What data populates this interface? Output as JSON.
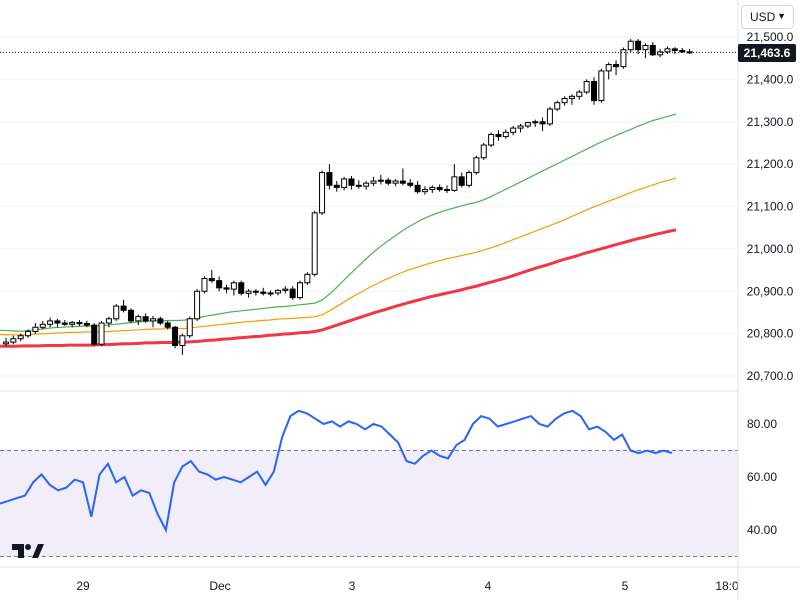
{
  "toolbar": {
    "currency_label": "USD"
  },
  "last_price_label": "21,463.6",
  "colors": {
    "candle_up_fill": "#ffffff",
    "candle_down_fill": "#000000",
    "candle_border": "#000000",
    "ma_green": "#4caf50",
    "ma_orange": "#ff9800",
    "ma_red": "#f23645",
    "rsi_line": "#2962ff",
    "rsi_band": "#7e57c2"
  },
  "icons": {
    "logo": "tradingview-logo-icon",
    "dropdown": "chevron-down-icon"
  },
  "chart_data": [
    {
      "type": "candlestick",
      "y_tick_labels": [
        "21,500.0",
        "21,400.0",
        "21,300.0",
        "21,200.0",
        "21,100.0",
        "21,000.0",
        "20,900.0",
        "20,800.0",
        "20,700.0"
      ],
      "ylim": [
        20670,
        21550
      ],
      "x_tick_labels": [
        "29",
        "Dec",
        "3",
        "4",
        "5",
        "18:0"
      ],
      "last_price": 21463.6,
      "ohlc": [
        [
          20776,
          20790,
          20770,
          20780
        ],
        [
          20780,
          20795,
          20775,
          20788
        ],
        [
          20788,
          20800,
          20782,
          20795
        ],
        [
          20795,
          20810,
          20790,
          20805
        ],
        [
          20805,
          20825,
          20800,
          20815
        ],
        [
          20815,
          20830,
          20810,
          20822
        ],
        [
          20822,
          20838,
          20815,
          20830
        ],
        [
          20830,
          20835,
          20815,
          20825
        ],
        [
          20825,
          20832,
          20818,
          20822
        ],
        [
          20822,
          20830,
          20815,
          20826
        ],
        [
          20826,
          20832,
          20818,
          20824
        ],
        [
          20824,
          20830,
          20815,
          20820
        ],
        [
          20820,
          20825,
          20770,
          20775
        ],
        [
          20775,
          20830,
          20770,
          20825
        ],
        [
          20825,
          20840,
          20815,
          20835
        ],
        [
          20835,
          20870,
          20830,
          20865
        ],
        [
          20865,
          20880,
          20850,
          20855
        ],
        [
          20855,
          20860,
          20825,
          20830
        ],
        [
          20830,
          20845,
          20820,
          20840
        ],
        [
          20840,
          20848,
          20825,
          20830
        ],
        [
          20830,
          20842,
          20815,
          20835
        ],
        [
          20835,
          20840,
          20820,
          20825
        ],
        [
          20825,
          20830,
          20810,
          20815
        ],
        [
          20815,
          20818,
          20765,
          20772
        ],
        [
          20772,
          20800,
          20750,
          20795
        ],
        [
          20795,
          20840,
          20790,
          20835
        ],
        [
          20835,
          20905,
          20830,
          20900
        ],
        [
          20900,
          20935,
          20895,
          20930
        ],
        [
          20930,
          20950,
          20920,
          20925
        ],
        [
          20925,
          20935,
          20900,
          20908
        ],
        [
          20908,
          20915,
          20895,
          20905
        ],
        [
          20905,
          20925,
          20890,
          20920
        ],
        [
          20920,
          20925,
          20890,
          20895
        ],
        [
          20895,
          20905,
          20885,
          20900
        ],
        [
          20900,
          20905,
          20890,
          20898
        ],
        [
          20898,
          20908,
          20890,
          20895
        ],
        [
          20895,
          20902,
          20888,
          20896
        ],
        [
          20896,
          20905,
          20890,
          20902
        ],
        [
          20902,
          20912,
          20895,
          20905
        ],
        [
          20905,
          20912,
          20880,
          20885
        ],
        [
          20885,
          20925,
          20880,
          20920
        ],
        [
          20920,
          20945,
          20915,
          20940
        ],
        [
          20940,
          21090,
          20935,
          21085
        ],
        [
          21085,
          21185,
          21080,
          21180
        ],
        [
          21180,
          21200,
          21140,
          21150
        ],
        [
          21150,
          21160,
          21135,
          21145
        ],
        [
          21145,
          21170,
          21138,
          21165
        ],
        [
          21165,
          21172,
          21140,
          21150
        ],
        [
          21150,
          21162,
          21142,
          21148
        ],
        [
          21148,
          21160,
          21140,
          21155
        ],
        [
          21155,
          21170,
          21148,
          21160
        ],
        [
          21160,
          21175,
          21152,
          21162
        ],
        [
          21162,
          21168,
          21150,
          21155
        ],
        [
          21155,
          21165,
          21148,
          21160
        ],
        [
          21160,
          21190,
          21150,
          21155
        ],
        [
          21155,
          21165,
          21145,
          21150
        ],
        [
          21150,
          21160,
          21130,
          21135
        ],
        [
          21135,
          21148,
          21128,
          21140
        ],
        [
          21140,
          21150,
          21132,
          21145
        ],
        [
          21145,
          21152,
          21135,
          21140
        ],
        [
          21140,
          21150,
          21132,
          21138
        ],
        [
          21138,
          21200,
          21135,
          21170
        ],
        [
          21170,
          21180,
          21145,
          21150
        ],
        [
          21150,
          21185,
          21145,
          21180
        ],
        [
          21180,
          21220,
          21175,
          21215
        ],
        [
          21215,
          21250,
          21210,
          21245
        ],
        [
          21245,
          21275,
          21240,
          21270
        ],
        [
          21270,
          21280,
          21255,
          21265
        ],
        [
          21265,
          21282,
          21260,
          21275
        ],
        [
          21275,
          21290,
          21268,
          21285
        ],
        [
          21285,
          21295,
          21275,
          21290
        ],
        [
          21290,
          21300,
          21285,
          21298
        ],
        [
          21298,
          21305,
          21288,
          21300
        ],
        [
          21300,
          21310,
          21278,
          21295
        ],
        [
          21295,
          21335,
          21290,
          21330
        ],
        [
          21330,
          21350,
          21325,
          21345
        ],
        [
          21345,
          21360,
          21338,
          21355
        ],
        [
          21355,
          21365,
          21340,
          21360
        ],
        [
          21360,
          21375,
          21352,
          21370
        ],
        [
          21370,
          21400,
          21365,
          21395
        ],
        [
          21395,
          21405,
          21340,
          21350
        ],
        [
          21350,
          21425,
          21345,
          21420
        ],
        [
          21420,
          21440,
          21400,
          21435
        ],
        [
          21435,
          21445,
          21410,
          21430
        ],
        [
          21430,
          21475,
          21425,
          21470
        ],
        [
          21470,
          21495,
          21465,
          21490
        ],
        [
          21490,
          21495,
          21460,
          21470
        ],
        [
          21470,
          21485,
          21450,
          21480
        ],
        [
          21480,
          21488,
          21455,
          21458
        ],
        [
          21458,
          21472,
          21452,
          21465
        ],
        [
          21465,
          21478,
          21460,
          21472
        ],
        [
          21472,
          21476,
          21460,
          21468
        ],
        [
          21468,
          21474,
          21462,
          21465
        ],
        [
          21465,
          21472,
          21460,
          21463.6
        ]
      ],
      "moving_averages": [
        {
          "color": "#4caf50",
          "values": [
            20808,
            20807,
            20806,
            20806,
            20808,
            20810,
            20812,
            20814,
            20815,
            20816,
            20817,
            20818,
            20818,
            20819,
            20820,
            20822,
            20824,
            20826,
            20828,
            20829,
            20830,
            20830,
            20831,
            20831,
            20832,
            20835,
            20838,
            20842,
            20845,
            20848,
            20851,
            20853,
            20855,
            20857,
            20859,
            20861,
            20863,
            20864,
            20866,
            20868,
            20870,
            20872,
            20880,
            20895,
            20912,
            20930,
            20948,
            20965,
            20982,
            20998,
            21012,
            21025,
            21038,
            21050,
            21060,
            21070,
            21078,
            21085,
            21091,
            21096,
            21101,
            21106,
            21110,
            21116,
            21124,
            21133,
            21142,
            21151,
            21160,
            21169,
            21178,
            21187,
            21196,
            21205,
            21214,
            21223,
            21232,
            21241,
            21250,
            21258,
            21266,
            21274,
            21281,
            21289,
            21296,
            21303,
            21308,
            21313,
            21318
          ]
        },
        {
          "color": "#ff9800",
          "values": [
            20798,
            20797,
            20797,
            20797,
            20798,
            20799,
            20800,
            20801,
            20802,
            20803,
            20803,
            20804,
            20804,
            20804,
            20805,
            20806,
            20807,
            20808,
            20809,
            20810,
            20811,
            20811,
            20812,
            20812,
            20812,
            20814,
            20816,
            20818,
            20820,
            20822,
            20824,
            20826,
            20828,
            20829,
            20831,
            20832,
            20834,
            20835,
            20836,
            20837,
            20838,
            20840,
            20845,
            20855,
            20866,
            20877,
            20888,
            20898,
            20908,
            20917,
            20926,
            20934,
            20942,
            20949,
            20955,
            20961,
            20966,
            20971,
            20976,
            20980,
            20984,
            20988,
            20992,
            20997,
            21003,
            21009,
            21016,
            21023,
            21030,
            21037,
            21044,
            21051,
            21058,
            21065,
            21073,
            21081,
            21089,
            21097,
            21104,
            21111,
            21118,
            21125,
            21132,
            21139,
            21145,
            21151,
            21157,
            21162,
            21167
          ]
        },
        {
          "color": "#f23645",
          "values": [
            20770,
            20770,
            20770,
            20771,
            20771,
            20771,
            20772,
            20772,
            20772,
            20773,
            20773,
            20773,
            20773,
            20774,
            20774,
            20775,
            20776,
            20776,
            20777,
            20778,
            20778,
            20779,
            20779,
            20780,
            20780,
            20781,
            20782,
            20784,
            20785,
            20787,
            20788,
            20790,
            20791,
            20793,
            20794,
            20796,
            20797,
            20799,
            20800,
            20802,
            20803,
            20805,
            20809,
            20815,
            20821,
            20827,
            20833,
            20839,
            20845,
            20851,
            20856,
            20862,
            20867,
            20872,
            20877,
            20882,
            20887,
            20891,
            20895,
            20899,
            20903,
            20908,
            20912,
            20917,
            20922,
            20927,
            20932,
            20938,
            20944,
            20950,
            20956,
            20961,
            20967,
            20973,
            20978,
            20983,
            20989,
            20994,
            20999,
            21004,
            21009,
            21014,
            21019,
            21024,
            21028,
            21033,
            21037,
            21041,
            21045
          ]
        }
      ]
    },
    {
      "type": "line",
      "y_tick_labels": [
        "80.00",
        "60.00",
        "40.00"
      ],
      "ylim": [
        30,
        93
      ],
      "bands": [
        30,
        70
      ],
      "values": [
        50,
        51,
        52,
        53,
        58,
        61,
        57,
        55,
        56,
        59,
        58,
        45,
        61,
        65,
        58,
        60,
        53,
        55,
        54,
        46,
        40,
        58,
        64,
        66,
        62,
        61,
        59,
        60,
        59,
        58,
        60,
        62,
        57,
        62,
        75,
        83,
        85,
        84,
        82,
        80,
        81,
        79,
        81,
        80,
        78,
        80,
        79,
        76,
        73,
        66,
        65,
        68,
        70,
        68,
        67,
        72,
        74,
        80,
        83,
        82,
        79,
        80,
        81,
        82,
        83,
        80,
        79,
        82,
        84,
        85,
        83,
        78,
        79,
        77,
        74,
        76,
        70,
        69,
        70,
        69,
        70,
        69
      ]
    }
  ]
}
